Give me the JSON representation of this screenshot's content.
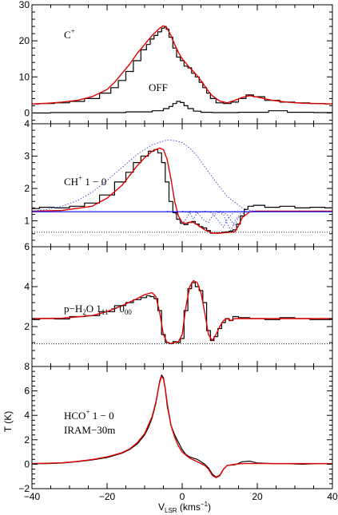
{
  "figure": {
    "xlabel_main": "V",
    "xlabel_sub": "LSR",
    "xlabel_unit": " (kms",
    "xlabel_unit_sup": "−1",
    "xlabel_close": ")",
    "ylabel": "T (K)"
  },
  "colors": {
    "observed": "#000000",
    "model": "#e00000",
    "gaussian": "#3344cc",
    "baseline": "#0000ff",
    "reference": "#000000"
  },
  "chart_data": [
    {
      "type": "line",
      "panel": "top",
      "label_main": "C",
      "label_sup": "+",
      "annotation": "OFF",
      "xlim": [
        -40,
        40
      ],
      "ylim": [
        -3,
        30
      ],
      "xticks": [
        -40,
        -20,
        0,
        20,
        40
      ],
      "xtick_labels": [
        "",
        "",
        "",
        "",
        ""
      ],
      "yticks": [
        0,
        10,
        20,
        30
      ],
      "ytick_labels": [
        "0",
        "10",
        "20",
        "30"
      ],
      "series": [
        {
          "role": "observed",
          "style": "step",
          "x": [
            -40,
            -36,
            -32,
            -28,
            -24,
            -20,
            -18,
            -16,
            -14,
            -12,
            -10,
            -9,
            -8,
            -7,
            -6,
            -5,
            -4.5,
            -4,
            -3,
            -2,
            -1,
            0,
            1,
            2,
            3,
            4,
            5,
            6,
            7,
            8,
            10,
            12,
            14,
            16,
            18,
            20,
            24,
            28,
            32,
            36,
            40
          ],
          "y": [
            2.5,
            2.6,
            2.8,
            3.2,
            4.0,
            5.5,
            7.0,
            9.0,
            11.5,
            14.5,
            17.5,
            19.0,
            20.5,
            21.5,
            22.5,
            23.5,
            24.0,
            23.2,
            21.0,
            18.0,
            15.5,
            14.5,
            13.0,
            12.5,
            11.0,
            10.0,
            8.5,
            7.0,
            5.5,
            4.0,
            2.8,
            2.6,
            3.0,
            4.0,
            5.0,
            4.5,
            3.5,
            3.0,
            2.8,
            2.6,
            2.5
          ]
        },
        {
          "role": "model",
          "style": "line",
          "x": [
            -40,
            -36,
            -32,
            -28,
            -24,
            -20,
            -18,
            -16,
            -14,
            -12,
            -10,
            -8,
            -6,
            -5,
            -4,
            -3,
            -2,
            -1,
            0,
            1,
            2,
            3,
            4,
            5,
            6,
            7,
            8,
            10,
            12,
            14,
            16,
            18,
            20,
            24,
            28,
            32,
            36,
            40
          ],
          "y": [
            2.5,
            2.7,
            3.0,
            3.5,
            4.5,
            6.5,
            8.5,
            11.0,
            13.5,
            16.5,
            19.0,
            21.5,
            23.5,
            24.2,
            23.5,
            21.5,
            19.0,
            16.8,
            15.0,
            13.8,
            12.5,
            11.5,
            10.3,
            9.0,
            7.5,
            6.0,
            4.8,
            3.3,
            2.8,
            3.5,
            4.3,
            4.8,
            4.4,
            3.5,
            3.0,
            2.7,
            2.6,
            2.5
          ]
        },
        {
          "role": "off",
          "style": "step",
          "x": [
            -40,
            -30,
            -20,
            -10,
            -6,
            -4,
            -3,
            -2,
            -1,
            0,
            1,
            2,
            4,
            6,
            10,
            20,
            26,
            30,
            40
          ],
          "y": [
            0.0,
            0.1,
            0.1,
            0.3,
            0.6,
            1.2,
            1.8,
            2.6,
            3.2,
            2.9,
            2.0,
            1.2,
            0.5,
            0.2,
            0.1,
            0.2,
            0.6,
            0.2,
            0.1
          ]
        }
      ]
    },
    {
      "type": "line",
      "panel": "ch",
      "label_main": "CH",
      "label_sup": "+",
      "label_rest": " 1 − 0",
      "xlim": [
        -40,
        40
      ],
      "ylim": [
        0.2,
        4
      ],
      "xticks": [
        -40,
        -20,
        0,
        20,
        40
      ],
      "xtick_labels": [
        "",
        "",
        "",
        "",
        ""
      ],
      "yticks": [
        1,
        2,
        3,
        4
      ],
      "ytick_labels": [
        "1",
        "2",
        "3",
        "4"
      ],
      "series": [
        {
          "role": "observed",
          "style": "step",
          "x": [
            -40,
            -36,
            -32,
            -28,
            -24,
            -20,
            -16,
            -14,
            -12,
            -10,
            -8,
            -7,
            -6,
            -5,
            -4,
            -3,
            -2,
            -1,
            0,
            1,
            2,
            3,
            4,
            5,
            6,
            7,
            8,
            9,
            10,
            11,
            12,
            13,
            14,
            15,
            16,
            17,
            18,
            20,
            24,
            28,
            32,
            36,
            40
          ],
          "y": [
            1.38,
            1.42,
            1.4,
            1.45,
            1.55,
            1.8,
            2.2,
            2.5,
            2.8,
            3.0,
            3.15,
            3.2,
            3.1,
            2.8,
            2.2,
            1.6,
            1.25,
            1.05,
            0.92,
            0.88,
            0.95,
            0.98,
            0.9,
            0.82,
            0.78,
            0.7,
            0.62,
            0.62,
            0.63,
            0.65,
            0.66,
            0.68,
            0.72,
            0.9,
            1.15,
            1.35,
            1.45,
            1.48,
            1.42,
            1.45,
            1.4,
            1.42,
            1.4
          ]
        },
        {
          "role": "model",
          "style": "line",
          "x": [
            -40,
            -32,
            -24,
            -20,
            -16,
            -12,
            -10,
            -8,
            -6,
            -5,
            -4,
            -3,
            -2,
            -1,
            0,
            1,
            2,
            3,
            4,
            5,
            6,
            8,
            10,
            12,
            14,
            15,
            16,
            18,
            20,
            30,
            40
          ],
          "y": [
            1.3,
            1.32,
            1.45,
            1.7,
            2.1,
            2.7,
            2.95,
            3.15,
            3.25,
            3.2,
            2.9,
            2.3,
            1.6,
            1.15,
            0.95,
            0.92,
            0.96,
            0.95,
            0.88,
            0.8,
            0.72,
            0.62,
            0.62,
            0.64,
            0.66,
            0.85,
            1.1,
            1.28,
            1.3,
            1.3,
            1.3
          ]
        },
        {
          "role": "gaussian",
          "style": "dotted",
          "x": [
            -40,
            -36,
            -32,
            -28,
            -24,
            -20,
            -16,
            -12,
            -8,
            -4,
            -2,
            0,
            2,
            4,
            8,
            12,
            16,
            18,
            20
          ],
          "y": [
            1.3,
            1.35,
            1.45,
            1.62,
            1.88,
            2.25,
            2.65,
            3.05,
            3.35,
            3.5,
            3.48,
            3.42,
            3.25,
            3.0,
            2.35,
            1.75,
            1.4,
            1.32,
            1.3
          ]
        },
        {
          "role": "absorption",
          "style": "dotted",
          "x": [
            -4,
            -2,
            -1,
            0,
            1,
            2,
            4
          ],
          "y": [
            1.3,
            1.25,
            1.05,
            0.92,
            1.05,
            1.25,
            1.3
          ]
        },
        {
          "role": "absorption",
          "style": "dotted",
          "x": [
            0,
            2,
            3,
            4,
            6
          ],
          "y": [
            1.3,
            1.25,
            1.05,
            1.25,
            1.3
          ]
        },
        {
          "role": "absorption",
          "style": "dotted",
          "x": [
            2,
            4,
            6,
            7,
            8,
            10
          ],
          "y": [
            1.3,
            1.25,
            1.0,
            0.95,
            1.15,
            1.3
          ]
        },
        {
          "role": "absorption",
          "style": "dotted",
          "x": [
            6,
            8,
            10,
            11,
            12,
            14
          ],
          "y": [
            1.3,
            1.25,
            0.95,
            0.8,
            1.05,
            1.3
          ]
        },
        {
          "role": "absorption",
          "style": "dotted",
          "x": [
            9,
            11,
            12,
            13,
            14,
            16
          ],
          "y": [
            1.3,
            1.2,
            0.9,
            0.7,
            1.0,
            1.3
          ]
        },
        {
          "role": "absorption",
          "style": "dotted",
          "x": [
            10,
            12,
            13,
            14,
            15,
            17
          ],
          "y": [
            1.3,
            1.2,
            1.0,
            0.85,
            1.1,
            1.3
          ]
        },
        {
          "role": "baseline",
          "style": "line",
          "x": [
            -40,
            40
          ],
          "y": [
            1.28,
            1.28
          ]
        },
        {
          "role": "reference",
          "style": "dotted",
          "x": [
            -40,
            40
          ],
          "y": [
            0.65,
            0.65
          ]
        }
      ]
    },
    {
      "type": "line",
      "panel": "h2o",
      "label_main": "p−H",
      "label_sub1": "2",
      "label_mid": "O 1",
      "label_sub2": "11",
      "label_dash": " − 0",
      "label_sub3": "00",
      "xlim": [
        -40,
        40
      ],
      "ylim": [
        0,
        6
      ],
      "xticks": [
        -40,
        -20,
        0,
        20,
        40
      ],
      "xtick_labels": [
        "",
        "",
        "",
        "",
        ""
      ],
      "yticks": [
        2,
        4,
        6
      ],
      "ytick_labels": [
        "2",
        "4",
        "6"
      ],
      "series": [
        {
          "role": "observed",
          "style": "step",
          "x": [
            -40,
            -36,
            -32,
            -28,
            -24,
            -20,
            -16,
            -14,
            -12,
            -10,
            -9,
            -8,
            -7,
            -6,
            -5,
            -4,
            -3,
            -2,
            -1,
            0,
            1,
            2,
            3,
            4,
            5,
            6,
            7,
            8,
            9,
            10,
            11,
            12,
            13,
            14,
            16,
            20,
            24,
            28,
            32,
            36,
            40
          ],
          "y": [
            2.35,
            2.4,
            2.38,
            2.5,
            2.55,
            2.75,
            3.05,
            3.2,
            3.35,
            3.45,
            3.55,
            3.5,
            3.4,
            2.8,
            1.6,
            1.2,
            1.15,
            1.25,
            1.2,
            1.4,
            2.8,
            3.9,
            4.2,
            4.0,
            3.8,
            3.2,
            1.8,
            1.3,
            1.5,
            1.9,
            2.2,
            2.4,
            2.3,
            2.5,
            2.45,
            2.4,
            2.35,
            2.45,
            2.4,
            2.35,
            2.35
          ]
        },
        {
          "role": "model",
          "style": "line",
          "x": [
            -40,
            -32,
            -24,
            -20,
            -16,
            -12,
            -10,
            -8,
            -7,
            -6,
            -5,
            -4,
            -3,
            -2,
            -1,
            0,
            1,
            2,
            3,
            4,
            5,
            6,
            7,
            8,
            9,
            10,
            11,
            12,
            13,
            14,
            16,
            20,
            30,
            40
          ],
          "y": [
            2.4,
            2.42,
            2.55,
            2.75,
            3.05,
            3.4,
            3.6,
            3.7,
            3.5,
            2.7,
            1.6,
            1.2,
            1.15,
            1.2,
            1.25,
            1.6,
            3.0,
            4.0,
            4.3,
            4.2,
            3.7,
            2.7,
            1.6,
            1.3,
            1.6,
            2.0,
            2.3,
            2.4,
            2.3,
            2.4,
            2.4,
            2.4,
            2.4,
            2.4
          ]
        },
        {
          "role": "reference",
          "style": "dotted",
          "x": [
            -40,
            40
          ],
          "y": [
            1.15,
            1.15
          ]
        }
      ]
    },
    {
      "type": "line",
      "panel": "hco",
      "label_main": "HCO",
      "label_sup": "+",
      "label_rest": " 1 − 0",
      "label_line2": "IRAM−30m",
      "xlim": [
        -40,
        40
      ],
      "ylim": [
        -2,
        8
      ],
      "xticks": [
        -40,
        -20,
        0,
        20,
        40
      ],
      "xtick_labels": [
        "−40",
        "−20",
        "0",
        "20",
        "40"
      ],
      "yticks": [
        -2,
        0,
        2,
        4,
        6,
        8
      ],
      "ytick_labels": [
        "−2",
        "0",
        "2",
        "4",
        "6",
        "8"
      ],
      "series": [
        {
          "role": "observed",
          "style": "line",
          "x": [
            -40,
            -36,
            -32,
            -28,
            -24,
            -20,
            -16,
            -14,
            -12,
            -10,
            -9,
            -8,
            -7,
            -6,
            -5.5,
            -5,
            -4.5,
            -4,
            -3,
            -2,
            -1,
            0,
            1,
            2,
            3,
            4,
            5,
            6,
            7,
            8,
            9,
            10,
            11,
            12,
            14,
            16,
            18,
            20,
            24,
            28,
            32,
            36,
            40
          ],
          "y": [
            0.05,
            0.05,
            0.1,
            0.2,
            0.35,
            0.55,
            0.9,
            1.2,
            1.65,
            2.4,
            3.0,
            3.8,
            5.0,
            6.8,
            7.3,
            7.1,
            6.2,
            4.8,
            3.2,
            2.4,
            1.8,
            1.2,
            0.8,
            0.6,
            0.5,
            0.4,
            0.2,
            0.0,
            -0.3,
            -0.8,
            -1.05,
            -0.9,
            -0.4,
            -0.1,
            -0.05,
            0.2,
            0.25,
            0.1,
            0.05,
            0.05,
            0.0,
            0.05,
            0.05
          ]
        },
        {
          "role": "model",
          "style": "line",
          "x": [
            -40,
            -36,
            -32,
            -28,
            -24,
            -20,
            -16,
            -14,
            -12,
            -10,
            -8,
            -7,
            -6,
            -5.5,
            -5,
            -4.5,
            -4,
            -3,
            -2,
            -1,
            0,
            2,
            4,
            6,
            7,
            8,
            9,
            10,
            11,
            12,
            14,
            16,
            20,
            30,
            40
          ],
          "y": [
            0.05,
            0.08,
            0.12,
            0.22,
            0.38,
            0.6,
            0.95,
            1.25,
            1.75,
            2.5,
            3.9,
            5.1,
            6.7,
            7.2,
            7.0,
            6.2,
            5.0,
            3.2,
            2.2,
            1.5,
            1.0,
            0.5,
            0.2,
            -0.1,
            -0.4,
            -0.9,
            -1.1,
            -0.95,
            -0.4,
            -0.1,
            0.0,
            0.05,
            0.05,
            0.05,
            0.05
          ]
        }
      ]
    }
  ]
}
